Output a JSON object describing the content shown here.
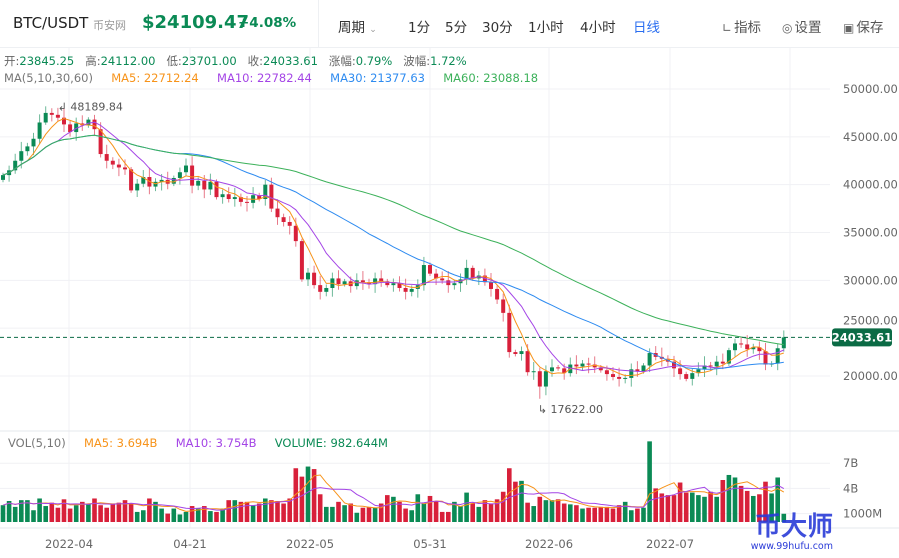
{
  "header": {
    "symbol": "BTC/USDT",
    "exchange": "币安网",
    "price": "$24109.47",
    "change": "+4.08%",
    "period_label": "周期",
    "periods": [
      "1分",
      "5分",
      "30分",
      "1小时",
      "4小时",
      "日线"
    ],
    "active_period": "日线",
    "tools": [
      {
        "label": "指标",
        "icon": "indicator-icon"
      },
      {
        "label": "设置",
        "icon": "settings-icon"
      },
      {
        "label": "保存",
        "icon": "camera-icon"
      }
    ]
  },
  "ohlc": {
    "open_label": "开:",
    "open": "23845.25",
    "high_label": "高:",
    "high": "24112.00",
    "low_label": "低:",
    "low": "23701.00",
    "close_label": "收:",
    "close": "24033.61",
    "change_label": "涨幅:",
    "change": "0.79%",
    "amp_label": "波幅:",
    "amp": "1.72%"
  },
  "ma": {
    "label": "MA(5,10,30,60)",
    "ma5": "MA5: 22712.24",
    "ma10": "MA10: 22782.44",
    "ma30": "MA30: 21377.63",
    "ma60": "MA60: 23088.18"
  },
  "vol": {
    "label": "VOL(5,10)",
    "ma5": "MA5: 3.694B",
    "ma10": "MA10: 3.754B",
    "volume": "VOLUME: 982.644M"
  },
  "colors": {
    "up": "#0b8a55",
    "down": "#d8203a",
    "ma5": "#f7931a",
    "ma10": "#a445e6",
    "ma30": "#2e8bf0",
    "ma60": "#3cb15a"
  },
  "watermark": {
    "name": "币大师",
    "url": "www.99hufu.com"
  },
  "chart_data": {
    "type": "candlestick",
    "price_ticks": [
      "50000.00",
      "45000.00",
      "40000.00",
      "35000.00",
      "30000.00",
      "25000.00",
      "20000.00"
    ],
    "price_tick_values": [
      50000,
      45000,
      40000,
      35000,
      30000,
      25000,
      20000
    ],
    "volume_ticks": [
      "7B",
      "4B",
      "1000M"
    ],
    "volume_tick_values": [
      7,
      4,
      1
    ],
    "date_ticks": [
      "2022-04",
      "04-21",
      "2022-05",
      "05-31",
      "2022-06",
      "2022-07"
    ],
    "date_tick_index": [
      11,
      31,
      50,
      70,
      90,
      110
    ],
    "max_label": "48189.84",
    "max_value": 48189.84,
    "max_index": 7,
    "min_label": "17622.00",
    "min_value": 17622,
    "min_index": 88,
    "last_price_label": "24033.61",
    "last_price": 24033.61,
    "closes": [
      41000,
      41500,
      42500,
      43500,
      44000,
      44800,
      46500,
      47500,
      47300,
      47000,
      46300,
      45500,
      46400,
      46200,
      46800,
      45800,
      43200,
      42500,
      42100,
      41800,
      41600,
      39400,
      40100,
      40800,
      39800,
      40300,
      40500,
      40100,
      40700,
      41300,
      42000,
      39900,
      40400,
      39500,
      40300,
      38700,
      39000,
      38500,
      38700,
      38200,
      38100,
      38900,
      38500,
      40000,
      37500,
      36600,
      36100,
      35700,
      34100,
      30100,
      30800,
      29500,
      28800,
      29200,
      30200,
      29600,
      29900,
      29400,
      30000,
      29800,
      29600,
      30200,
      29900,
      29500,
      29700,
      29200,
      28800,
      29100,
      29500,
      31600,
      30700,
      30200,
      30000,
      29500,
      29700,
      30100,
      31300,
      30200,
      30500,
      29800,
      29100,
      28000,
      26600,
      22500,
      22300,
      22600,
      20400,
      20500,
      18900,
      20500,
      20900,
      20800,
      20300,
      21200,
      21000,
      21300,
      21200,
      20900,
      20600,
      20200,
      19900,
      19700,
      19800,
      20700,
      20500,
      21100,
      22400,
      22000,
      21800,
      21500,
      20800,
      20200,
      19700,
      20300,
      20700,
      21100,
      21000,
      21500,
      21300,
      22700,
      23400,
      23300,
      22800,
      23000,
      22600,
      21200,
      21300,
      22900,
      24033.61
    ],
    "first_open": 40500,
    "volumes_B": [
      2.0,
      2.5,
      1.8,
      2.6,
      2.6,
      1.4,
      2.8,
      1.9,
      2.3,
      1.7,
      2.7,
      1.6,
      2.0,
      2.4,
      2.2,
      2.8,
      2.0,
      1.7,
      2.1,
      2.3,
      2.6,
      2.2,
      1.2,
      1.4,
      2.8,
      2.4,
      1.6,
      1.0,
      1.6,
      0.9,
      1.2,
      1.9,
      1.6,
      1.9,
      1.3,
      1.2,
      1.6,
      2.6,
      2.6,
      2.4,
      2.4,
      2.0,
      2.2,
      2.8,
      2.6,
      2.5,
      2.2,
      2.8,
      6.4,
      5.4,
      6.6,
      6.3,
      3.3,
      1.8,
      1.8,
      2.4,
      2.0,
      2.2,
      1.1,
      1.7,
      1.8,
      1.7,
      2.2,
      3.2,
      3.0,
      2.4,
      1.6,
      1.4,
      3.3,
      2.2,
      3.1,
      2.5,
      1.2,
      1.2,
      2.4,
      1.9,
      3.5,
      2.2,
      1.8,
      2.6,
      2.2,
      2.7,
      3.6,
      6.4,
      4.8,
      4.9,
      2.3,
      1.9,
      3.0,
      2.6,
      2.6,
      2.7,
      2.2,
      2.1,
      2.0,
      1.6,
      1.7,
      1.7,
      1.8,
      1.8,
      1.6,
      2.0,
      2.4,
      1.4,
      1.6,
      1.7,
      9.6,
      4.0,
      3.4,
      3.2,
      3.2,
      4.7,
      3.5,
      3.5,
      3.2,
      3.0,
      3.6,
      3.0,
      5.0,
      5.6,
      5.3,
      4.3,
      3.7,
      3.1,
      3.3,
      4.8,
      3.4,
      5.3,
      0.98
    ]
  }
}
